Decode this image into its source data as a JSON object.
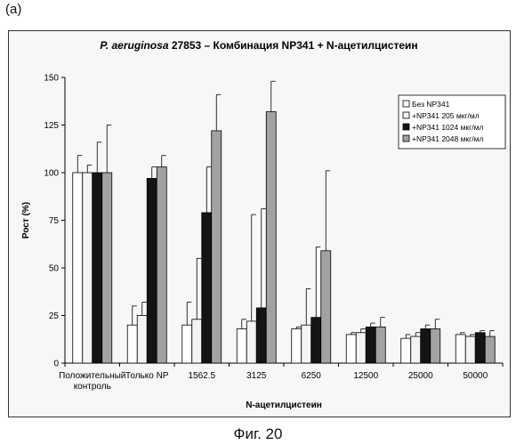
{
  "panel_label": "(a)",
  "figure_caption": "Фиг. 20",
  "chart_data": {
    "type": "bar",
    "title_italic": "P. aeruginosa",
    "title_rest": " 27853 – Комбинация NP341 + N-ацетилцистеин",
    "xlabel": "N-ацетилцистеин",
    "ylabel": "Рост (%)",
    "ylim": [
      0,
      150
    ],
    "yticks": [
      0,
      25,
      50,
      75,
      100,
      125,
      150
    ],
    "grid": false,
    "legend_position": "top-right",
    "categories": [
      [
        "Положительный",
        "контроль"
      ],
      [
        "Только NP"
      ],
      [
        "1562.5"
      ],
      [
        "3125"
      ],
      [
        "6250"
      ],
      [
        "12500"
      ],
      [
        "25000"
      ],
      [
        "50000"
      ]
    ],
    "series": [
      {
        "name": "Без NP341",
        "color": "#ffffff",
        "values": [
          100,
          20,
          20,
          18,
          18,
          15,
          13,
          15
        ],
        "errors": [
          9,
          10,
          12,
          5,
          1,
          1,
          2,
          1
        ]
      },
      {
        "name": "+NP341 205 мкг/мл",
        "color": "#f3f3f3",
        "values": [
          100,
          25,
          23,
          22,
          20,
          16,
          14,
          14
        ],
        "errors": [
          4,
          7,
          32,
          56,
          19,
          2,
          2,
          1
        ]
      },
      {
        "name": "+NP341 1024 мкг/мл",
        "color": "#141414",
        "values": [
          100,
          97,
          79,
          29,
          24,
          19,
          18,
          16
        ],
        "errors": [
          16,
          6,
          24,
          52,
          37,
          2,
          2,
          1
        ]
      },
      {
        "name": "+NP341 2048 мкг/мл",
        "color": "#a2a2a2",
        "values": [
          100,
          103,
          122,
          132,
          59,
          19,
          18,
          14
        ],
        "errors": [
          25,
          6,
          19,
          16,
          42,
          5,
          5,
          3
        ]
      }
    ]
  }
}
